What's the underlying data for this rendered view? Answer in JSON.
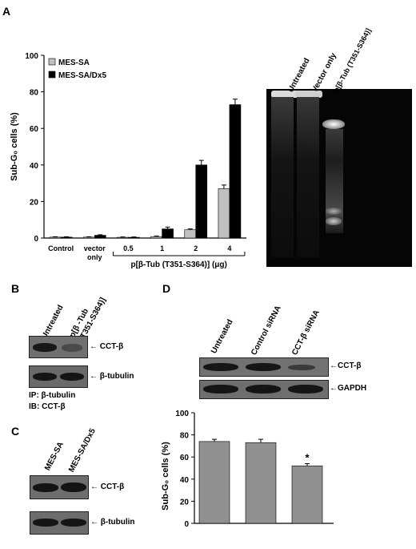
{
  "panels": {
    "A": {
      "letter": "A",
      "chart_data": {
        "type": "bar",
        "ylabel": "Sub-G₀ cells (%)",
        "xlabel": "p[β-Tub (T351-S364)] (μg)",
        "categories": [
          "Control",
          "vector only",
          "0.5",
          "1",
          "2",
          "4"
        ],
        "category_lines": [
          [
            "Control"
          ],
          [
            "vector",
            "only"
          ],
          [
            "0.5"
          ],
          [
            "1"
          ],
          [
            "2"
          ],
          [
            "4"
          ]
        ],
        "yticks": [
          0,
          20,
          40,
          60,
          80,
          100
        ],
        "ylim": [
          0,
          100
        ],
        "legend_position": "top-left",
        "grid": false,
        "series": [
          {
            "name": "MES-SA",
            "color": "#c0c0c0",
            "values": [
              0.5,
              0.5,
              0.4,
              0.8,
              4.5,
              27
            ],
            "errors": [
              0.2,
              0.2,
              0.2,
              0.3,
              0.5,
              2
            ]
          },
          {
            "name": "MES-SA/Dx5",
            "color": "#000000",
            "values": [
              0.5,
              1.5,
              0.4,
              5,
              40,
              73
            ],
            "errors": [
              0.2,
              0.3,
              0.2,
              1,
              2.5,
              3
            ]
          }
        ]
      },
      "gel_lanes": [
        "Untreated",
        "Vector only",
        "p[β-Tub (T351-S364)]"
      ]
    },
    "B": {
      "letter": "B",
      "lanes": [
        "Untreated",
        "p[β-Tub (T351-S364)]"
      ],
      "lane2_line1": "p[β -Tub",
      "lane2_line2": "(T351-S364)]",
      "blots": [
        "← CCT-β",
        "← β-tubulin"
      ],
      "ip": "IP: β-tubulin",
      "ib": "IB: CCT-β"
    },
    "C": {
      "letter": "C",
      "lanes": [
        "MES-SA",
        "MES-SA/Dx5"
      ],
      "blots": [
        "← CCT-β",
        "← β-tubulin"
      ]
    },
    "D": {
      "letter": "D",
      "lanes": [
        "Untreated",
        "Control siRNA",
        "CCT-β siRNA"
      ],
      "blots": [
        "←CCT-β",
        "←GAPDH"
      ],
      "chart_data": {
        "type": "bar",
        "ylabel": "Sub-G₀ cells (%)",
        "categories": [
          "Untreated",
          "Control siRNA",
          "CCT-β siRNA"
        ],
        "yticks": [
          0,
          20,
          40,
          60,
          80,
          100
        ],
        "ylim": [
          0,
          100
        ],
        "grid": false,
        "series": [
          {
            "color": "#909090",
            "values": [
              74,
              73,
              52
            ],
            "errors": [
              2,
              3,
              2
            ]
          }
        ],
        "annotations": [
          "",
          "",
          "*"
        ]
      }
    }
  }
}
